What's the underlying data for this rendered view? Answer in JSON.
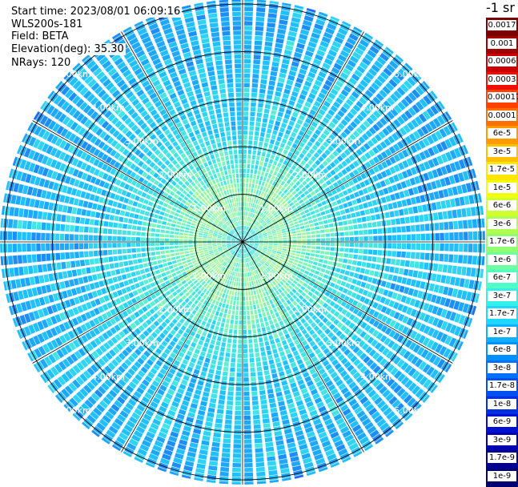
{
  "info": {
    "start_time": "Start time: 2023/08/01 06:09:16",
    "instrument": "WLS200s-181",
    "field": "Field: BETA",
    "elevation": "Elevation(deg): 35.30",
    "nrays": "NRays: 120"
  },
  "colorbar": {
    "unit": "-1 sr",
    "labels": [
      "0.0017",
      "0.001",
      "0.0006",
      "0.0003",
      "0.00017",
      "0.0001",
      "6e-5",
      "3e-5",
      "1.7e-5",
      "1e-5",
      "6e-6",
      "3e-6",
      "1.7e-6",
      "1e-6",
      "6e-7",
      "3e-7",
      "1.7e-7",
      "1e-7",
      "6e-8",
      "3e-8",
      "1.7e-8",
      "1e-8",
      "6e-9",
      "3e-9",
      "1.7e-9",
      "1e-9"
    ],
    "colors": [
      "#7a0000",
      "#a00000",
      "#cc0000",
      "#ee1000",
      "#ff4000",
      "#ff7000",
      "#ff9a00",
      "#ffc000",
      "#ffe600",
      "#f0ff10",
      "#d0ff30",
      "#b0ff50",
      "#90ff70",
      "#70ffa0",
      "#50ffc8",
      "#30f0e8",
      "#20d8ff",
      "#10b0ff",
      "#0090ff",
      "#0070ff",
      "#0050f0",
      "#0030e0",
      "#0010d0",
      "#0000b0",
      "#000090",
      "#000070"
    ]
  },
  "chart_data": {
    "type": "heatmap",
    "projection": "polar PPI",
    "field": "BETA",
    "n_rays": 120,
    "range_rings_km": [
      1.0,
      2.0,
      3.0,
      4.0,
      5.0
    ],
    "range_labels": [
      "1.00km",
      "2.00km",
      "3.00km",
      "4.00km",
      "5.00km"
    ],
    "max_range_km": 5.1,
    "approx_beta_by_range": [
      {
        "range_km": 0.5,
        "value": "3e-7"
      },
      {
        "range_km": 1.0,
        "value": "6e-7"
      },
      {
        "range_km": 2.0,
        "value": "3e-7"
      },
      {
        "range_km": 3.0,
        "value": "1e-7"
      },
      {
        "range_km": 4.0,
        "value": "6e-8"
      },
      {
        "range_km": 5.0,
        "value": "3e-8"
      }
    ],
    "grid": true
  }
}
